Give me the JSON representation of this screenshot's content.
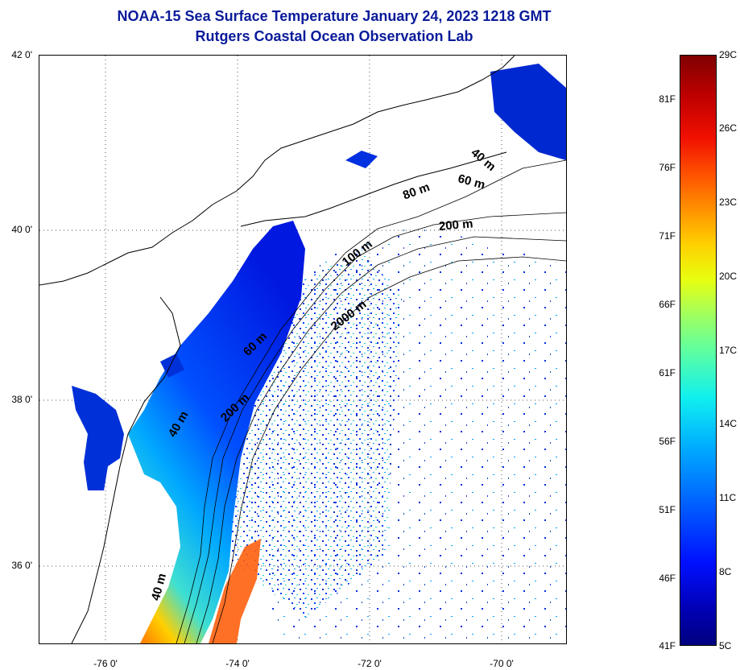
{
  "title": {
    "line1": "NOAA-15 Sea Surface Temperature January 24, 2023 1218 GMT",
    "line2": "Rutgers Coastal Ocean Observation Lab"
  },
  "axes": {
    "latitude_labels": [
      "42 0'",
      "40 0'",
      "38 0'",
      "36 0'"
    ],
    "longitude_labels": [
      "-76 0'",
      "-74 0'",
      "-72 0'",
      "-70 0'"
    ]
  },
  "depth_contours": {
    "labels": [
      "40 m",
      "60 m",
      "80 m",
      "200 m",
      "100 m",
      "2000 m",
      "60 m",
      "40 m",
      "200 m",
      "40 m"
    ]
  },
  "colorbar": {
    "fahrenheit": [
      "81F",
      "76F",
      "71F",
      "66F",
      "61F",
      "56F",
      "51F",
      "46F",
      "41F"
    ],
    "celsius": [
      "29C",
      "26C",
      "23C",
      "20C",
      "17C",
      "14C",
      "11C",
      "8C",
      "5C"
    ]
  },
  "colors": {
    "title": "#0a1b9a",
    "land": "#ffffff",
    "cold": "#0010ff",
    "warm": "#ff5000"
  }
}
